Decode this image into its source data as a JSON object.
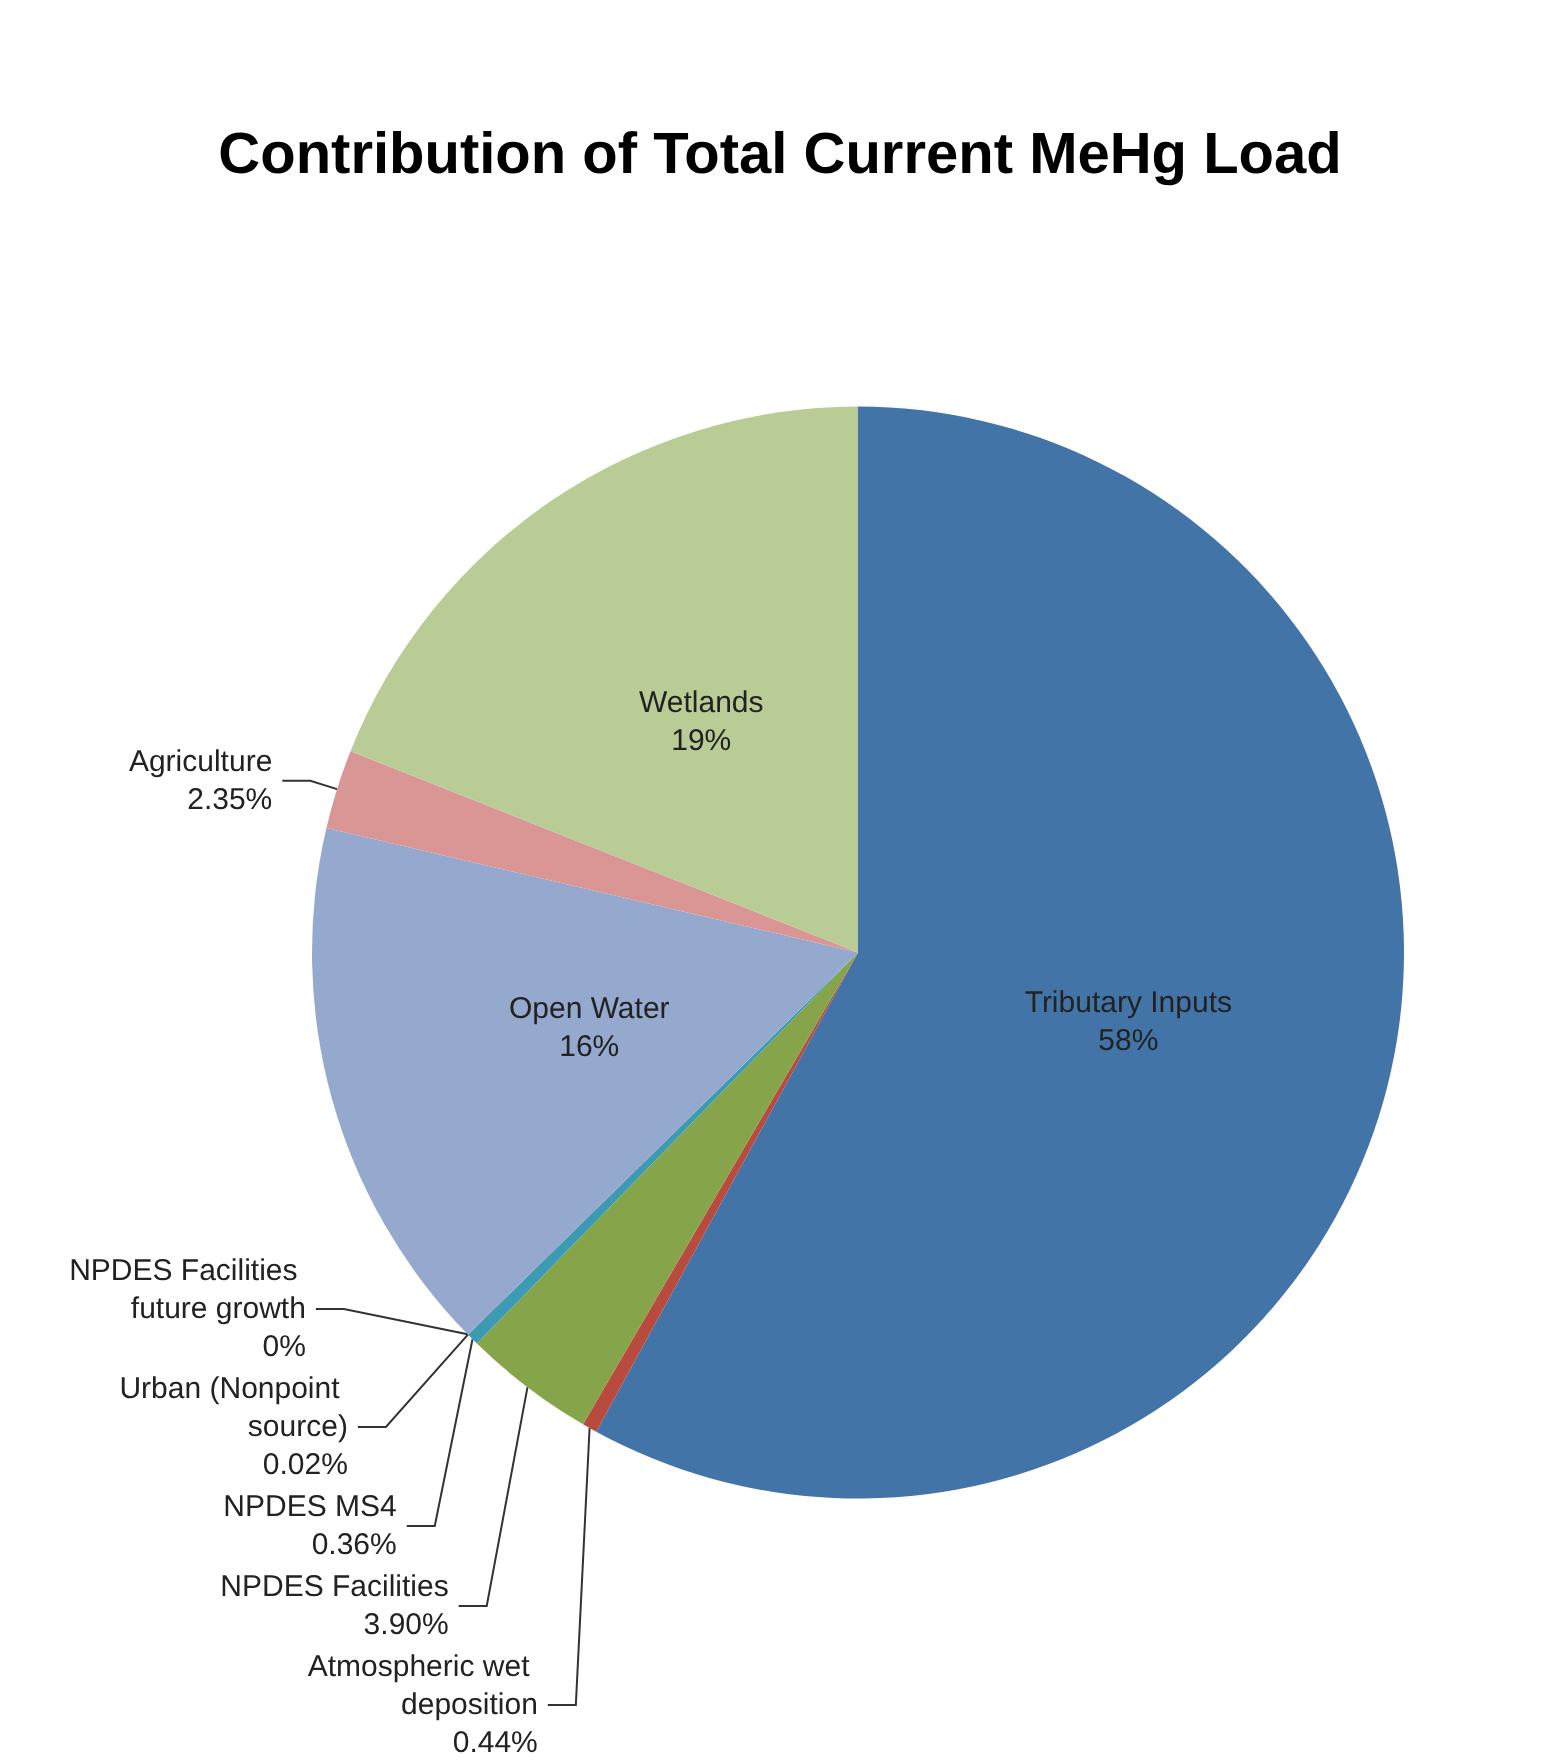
{
  "chart_data": {
    "type": "pie",
    "title": "Contribution of Total Current MeHg Load",
    "categories": [
      "Tributary Inputs",
      "Atmospheric wet deposition",
      "NPDES Facilities",
      "NPDES MS4",
      "Urban (Nonpoint source)",
      "NPDES Facilities future growth",
      "Open Water",
      "Agriculture",
      "Wetlands"
    ],
    "values": [
      58,
      0.44,
      3.9,
      0.36,
      0.02,
      0,
      16,
      2.35,
      19
    ],
    "value_labels": [
      "58%",
      "0.44%",
      "3.90%",
      "0.36%",
      "0.02%",
      "0%",
      "16%",
      "2.35%",
      "19%"
    ],
    "colors": [
      "#4374a8",
      "#b94a3e",
      "#86a44a",
      "#3a9bb3",
      "#7f6a9f",
      "#e68a3c",
      "#95a9cf",
      "#d99694",
      "#b9cc95"
    ]
  }
}
